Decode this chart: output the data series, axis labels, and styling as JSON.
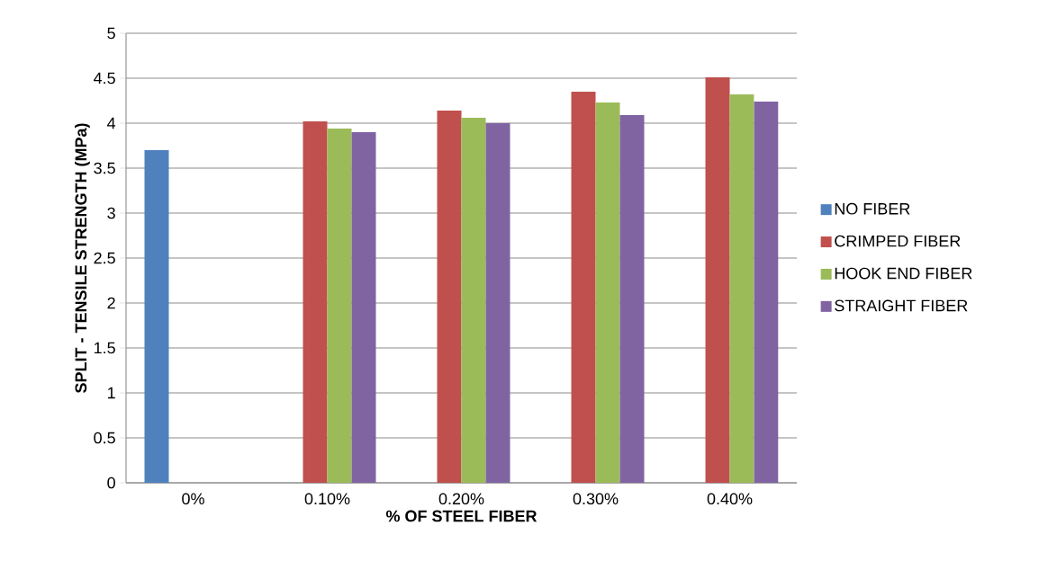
{
  "chart_data": {
    "type": "bar",
    "xlabel": "% OF STEEL FIBER",
    "ylabel": "SPLIT - TENSILE STRENGTH (MPa)",
    "categories": [
      "0%",
      "0.10%",
      "0.20%",
      "0.30%",
      "0.40%"
    ],
    "series": [
      {
        "name": "NO FIBER",
        "color": "#4f81bd",
        "values": [
          3.7,
          null,
          null,
          null,
          null
        ]
      },
      {
        "name": "CRIMPED FIBER",
        "color": "#c0504d",
        "values": [
          null,
          4.02,
          4.14,
          4.35,
          4.51
        ]
      },
      {
        "name": "HOOK END FIBER",
        "color": "#9bbb59",
        "values": [
          null,
          3.94,
          4.06,
          4.23,
          4.32
        ]
      },
      {
        "name": "STRAIGHT FIBER",
        "color": "#8064a2",
        "values": [
          null,
          3.9,
          4.0,
          4.09,
          4.24
        ]
      }
    ],
    "ylim": [
      0,
      5
    ],
    "yticks": [
      0,
      0.5,
      1,
      1.5,
      2,
      2.5,
      3,
      3.5,
      4,
      4.5,
      5
    ],
    "grid": "y",
    "legend": "right"
  }
}
